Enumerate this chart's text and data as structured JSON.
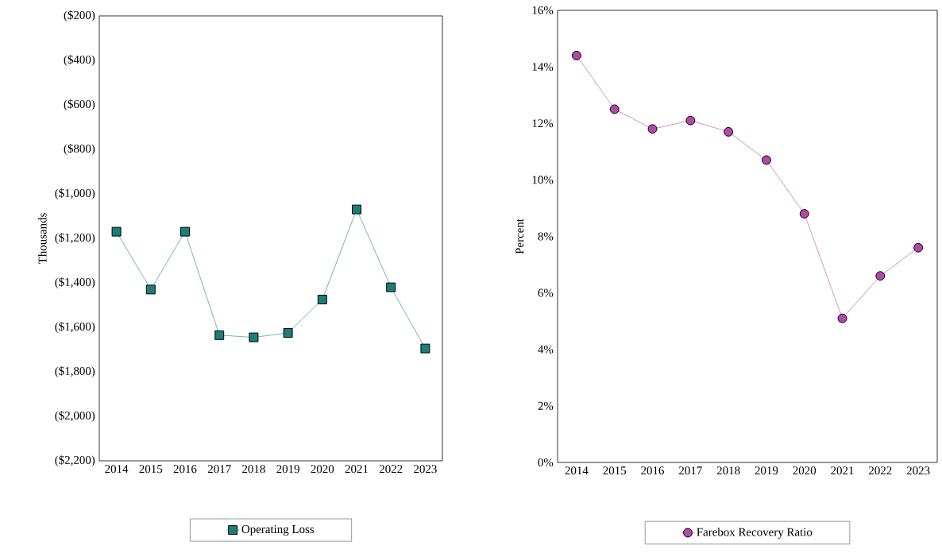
{
  "chart_data": [
    {
      "type": "line",
      "categories": [
        "2014",
        "2015",
        "2016",
        "2017",
        "2018",
        "2019",
        "2020",
        "2021",
        "2022",
        "2023"
      ],
      "ylabel": "Thousands",
      "ylim": [
        -2200,
        -200
      ],
      "yticks": [
        {
          "value": -200,
          "label": "($200)"
        },
        {
          "value": -400,
          "label": "($400)"
        },
        {
          "value": -600,
          "label": "($600)"
        },
        {
          "value": -800,
          "label": "($800)"
        },
        {
          "value": -1000,
          "label": "($1,000)"
        },
        {
          "value": -1200,
          "label": "($1,200)"
        },
        {
          "value": -1400,
          "label": "($1,400)"
        },
        {
          "value": -1600,
          "label": "($1,600)"
        },
        {
          "value": -1800,
          "label": "($1,800)"
        },
        {
          "value": -2000,
          "label": "($2,000)"
        },
        {
          "value": -2200,
          "label": "($2,200)"
        }
      ],
      "series": [
        {
          "name": "Operating Loss",
          "color": "#1b7f79",
          "values": [
            -1170,
            -1430,
            -1170,
            -1635,
            -1645,
            -1625,
            -1475,
            -1070,
            -1420,
            -1695
          ]
        }
      ],
      "marker": "square",
      "legend": "bottom"
    },
    {
      "type": "line",
      "categories": [
        "2014",
        "2015",
        "2016",
        "2017",
        "2018",
        "2019",
        "2020",
        "2021",
        "2022",
        "2023"
      ],
      "ylabel": "Percent",
      "ylim": [
        0,
        16
      ],
      "yticks": [
        {
          "value": 0,
          "label": "0%"
        },
        {
          "value": 2,
          "label": "2%"
        },
        {
          "value": 4,
          "label": "4%"
        },
        {
          "value": 6,
          "label": "6%"
        },
        {
          "value": 8,
          "label": "8%"
        },
        {
          "value": 10,
          "label": "10%"
        },
        {
          "value": 12,
          "label": "12%"
        },
        {
          "value": 14,
          "label": "14%"
        },
        {
          "value": 16,
          "label": "16%"
        }
      ],
      "series": [
        {
          "name": "Farebox Recovery Ratio",
          "color": "#b04aa6",
          "values": [
            14.4,
            12.5,
            11.8,
            12.1,
            11.7,
            10.7,
            8.8,
            5.1,
            6.6,
            7.6
          ]
        }
      ],
      "marker": "circle",
      "legend": "bottom"
    }
  ]
}
